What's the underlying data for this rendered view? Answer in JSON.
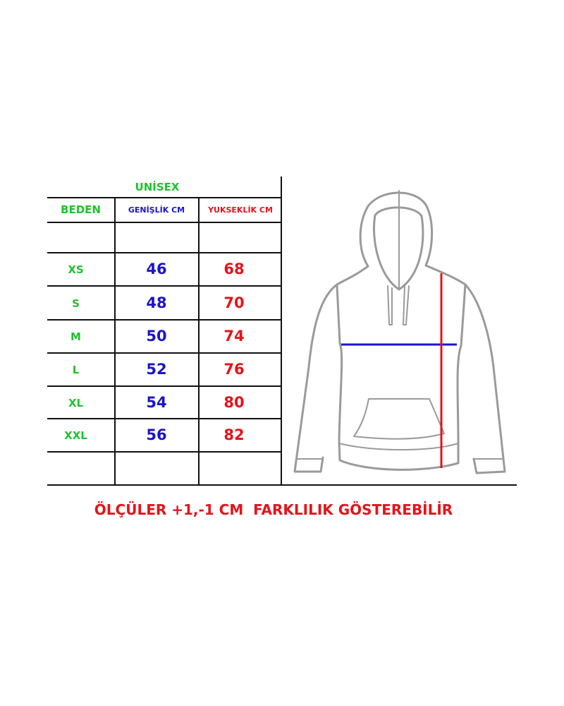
{
  "table": {
    "group_title": "UNİSEX",
    "headers": {
      "size": "BEDEN",
      "width": "GENİŞLİK CM",
      "height": "YUKSEKLİK CM"
    },
    "rows": [
      {
        "size": "XS",
        "width": "46",
        "height": "68"
      },
      {
        "size": "S",
        "width": "48",
        "height": "70"
      },
      {
        "size": "M",
        "width": "50",
        "height": "74"
      },
      {
        "size": "L",
        "width": "52",
        "height": "76"
      },
      {
        "size": "XL",
        "width": "54",
        "height": "80"
      },
      {
        "size": "XXL",
        "width": "56",
        "height": "82"
      }
    ]
  },
  "note": "ÖLÇÜLER +1,-1 CM  FARKLILIK GÖSTEREBİLİR",
  "colors": {
    "size": "#1ec22e",
    "width": "#1c14c8",
    "height": "#e3141c",
    "outline": "#9a9a9a"
  },
  "diagram": {
    "icon": "hoodie-outline",
    "width_marker_color": "#1c14c8",
    "height_marker_color": "#e3141c"
  }
}
